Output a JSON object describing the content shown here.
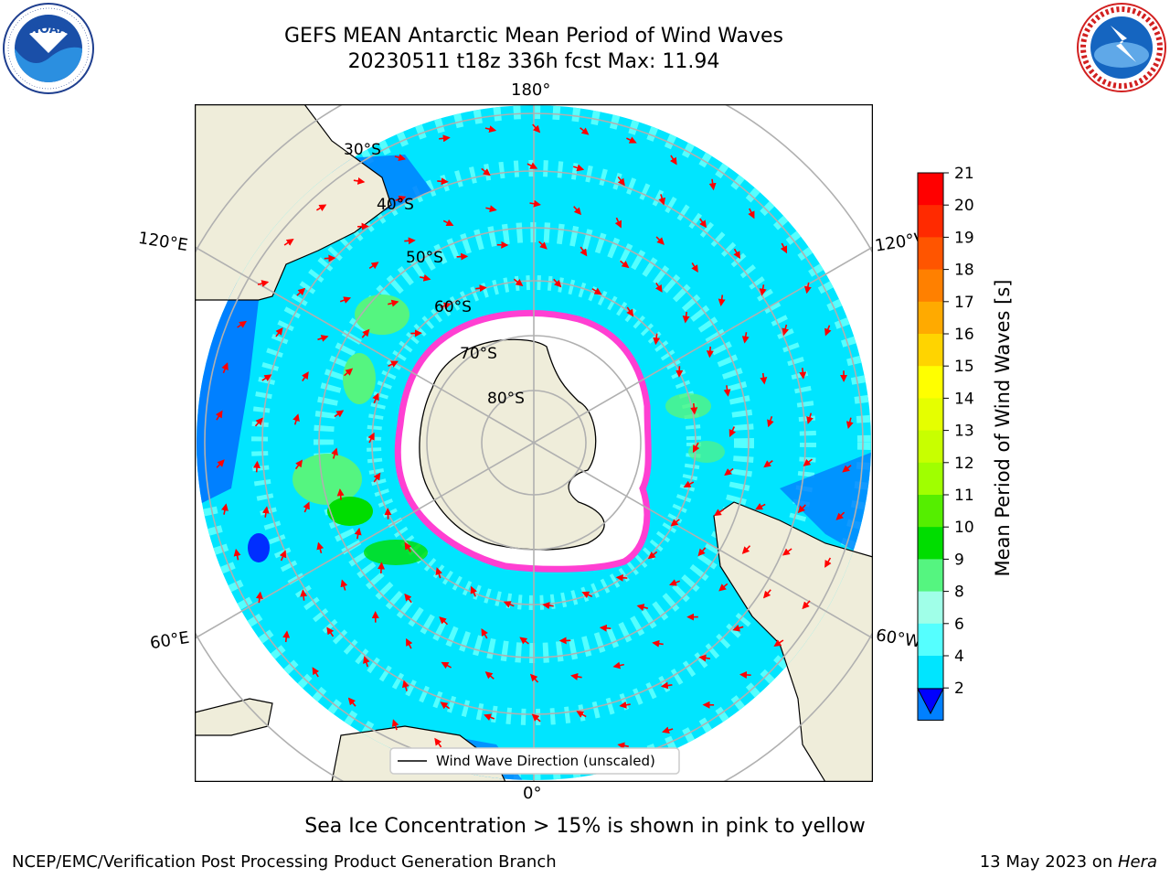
{
  "header": {
    "title_line1": "GEFS MEAN Antarctic Mean Period of Wind Waves",
    "title_line2": "20230511 t18z 336h fcst   Max: 11.94"
  },
  "logos": {
    "noaa_text": "NOAA",
    "noaa_ring_text": "NATIONAL OCEANIC AND ATMOSPHERIC ADMINISTRATION • U.S. DEPARTMENT OF COMMERCE",
    "nws_ring_text": "NATIONAL WEATHER SERVICE"
  },
  "map": {
    "longitude_labels": {
      "top": "180°",
      "bottom": "0°",
      "upper_left": "120°E",
      "upper_right": "120°W",
      "lower_left": "60°E",
      "lower_right": "60°W"
    },
    "latitude_labels": [
      "30°S",
      "40°S",
      "50°S",
      "60°S",
      "70°S",
      "80°S"
    ],
    "legend_label": "Wind Wave Direction (unscaled)"
  },
  "colorbar": {
    "label": "Mean Period of Wind Waves [s]",
    "ticks": [
      "21",
      "20",
      "19",
      "18",
      "17",
      "16",
      "15",
      "14",
      "13",
      "12",
      "11",
      "10",
      "9",
      "8",
      "6",
      "4",
      "2"
    ],
    "colors_top_to_bottom": [
      "#ff0000",
      "#ff2a00",
      "#ff5500",
      "#ff8000",
      "#ffaa00",
      "#ffd400",
      "#ffff00",
      "#e5ff00",
      "#c8ff00",
      "#a0ff00",
      "#55ee00",
      "#00dd00",
      "#55f580",
      "#a0ffe8",
      "#55ffff",
      "#00e5ff",
      "#0080ff"
    ],
    "extend_color": "#0000ff"
  },
  "notes": {
    "sea_ice": "Sea Ice Concentration > 15% is shown in pink to yellow"
  },
  "footer": {
    "left": "NCEP/EMC/Verification Post Processing Product Generation Branch",
    "right_date": "13 May 2023 on ",
    "right_host": "Hera"
  }
}
